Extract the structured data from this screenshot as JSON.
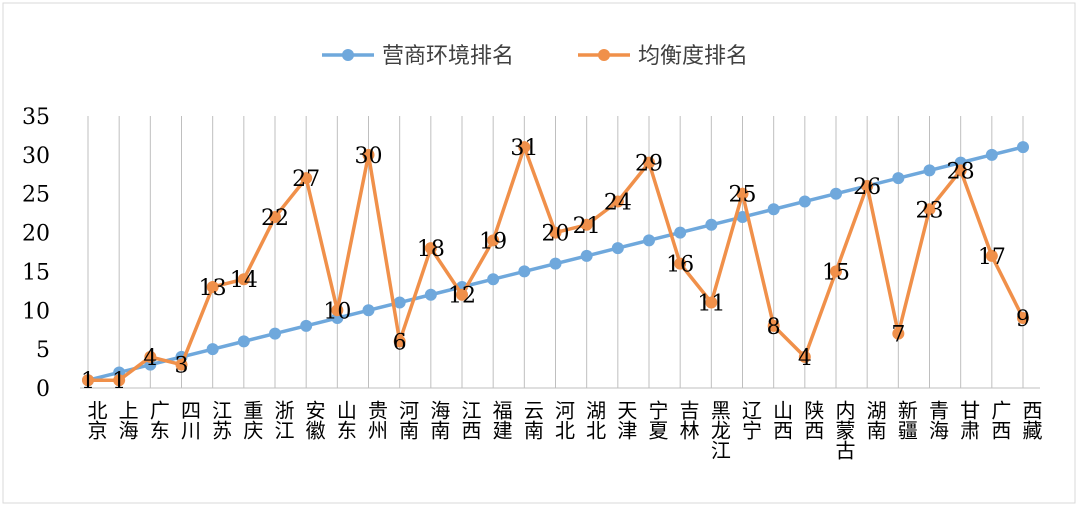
{
  "chart_data": {
    "type": "line",
    "title": "",
    "xlabel": "",
    "ylabel": "",
    "ylim": [
      0,
      35
    ],
    "yticks": [
      0,
      5,
      10,
      15,
      20,
      25,
      30,
      35
    ],
    "grid": "vertical lines at categories",
    "legend_position": "top",
    "categories": [
      "北京",
      "上海",
      "广东",
      "四川",
      "江苏",
      "重庆",
      "浙江",
      "安徽",
      "山东",
      "贵州",
      "河南",
      "海南",
      "江西",
      "福建",
      "云南",
      "河北",
      "湖北",
      "天津",
      "宁夏",
      "吉林",
      "黑龙江",
      "辽宁",
      "山西",
      "陕西",
      "内蒙古",
      "湖南",
      "新疆",
      "青海",
      "甘肃",
      "广西",
      "西藏"
    ],
    "series": [
      {
        "name": "营商环境排名",
        "color": "#6fa8dc",
        "data_labels": false,
        "values": [
          1,
          2,
          3,
          4,
          5,
          6,
          7,
          8,
          9,
          10,
          11,
          12,
          13,
          14,
          15,
          16,
          17,
          18,
          19,
          20,
          21,
          22,
          23,
          24,
          25,
          26,
          27,
          28,
          29,
          30,
          31
        ]
      },
      {
        "name": "均衡度排名",
        "color": "#f0904a",
        "data_labels": true,
        "values": [
          1,
          1,
          4,
          3,
          13,
          14,
          22,
          27,
          10,
          30,
          6,
          18,
          12,
          19,
          31,
          20,
          21,
          24,
          29,
          16,
          11,
          25,
          8,
          4,
          15,
          26,
          7,
          23,
          28,
          17,
          9
        ]
      }
    ]
  }
}
